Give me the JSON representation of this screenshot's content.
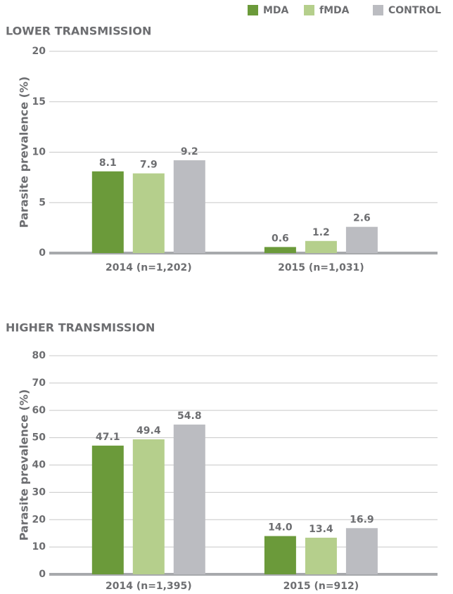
{
  "chart_data": [
    {
      "type": "bar",
      "title": "LOWER TRANSMISSION",
      "ylabel": "Parasite prevalence (%)",
      "categories": [
        "2014 (n=1,202)",
        "2015 (n=1,031)"
      ],
      "series": [
        {
          "name": "MDA",
          "color": "#6b9a3a",
          "values": [
            8.1,
            0.6
          ]
        },
        {
          "name": "fMDA",
          "color": "#b5cf8c",
          "values": [
            7.9,
            1.2
          ]
        },
        {
          "name": "CONTROL",
          "color": "#bbbcc1",
          "values": [
            9.2,
            2.6
          ]
        }
      ],
      "ylim": [
        0,
        20
      ],
      "yticks": [
        0,
        5,
        10,
        15,
        20
      ],
      "grid": true
    },
    {
      "type": "bar",
      "title": "HIGHER TRANSMISSION",
      "ylabel": "Parasite prevalence (%)",
      "categories": [
        "2014 (n=1,395)",
        "2015 (n=912)"
      ],
      "series": [
        {
          "color": "#6b9a3a",
          "values": [
            47.1,
            14
          ],
          "value_labels": [
            "47.1",
            "14.0"
          ]
        },
        {
          "color": "#b5cf8c",
          "values": [
            49.4,
            13.4
          ]
        },
        {
          "color": "#bbbcc1",
          "values": [
            54.8,
            16.9
          ]
        }
      ],
      "ylim": [
        0,
        80
      ],
      "yticks": [
        0,
        10,
        20,
        30,
        40,
        50,
        60,
        70,
        80
      ],
      "grid": true
    }
  ]
}
